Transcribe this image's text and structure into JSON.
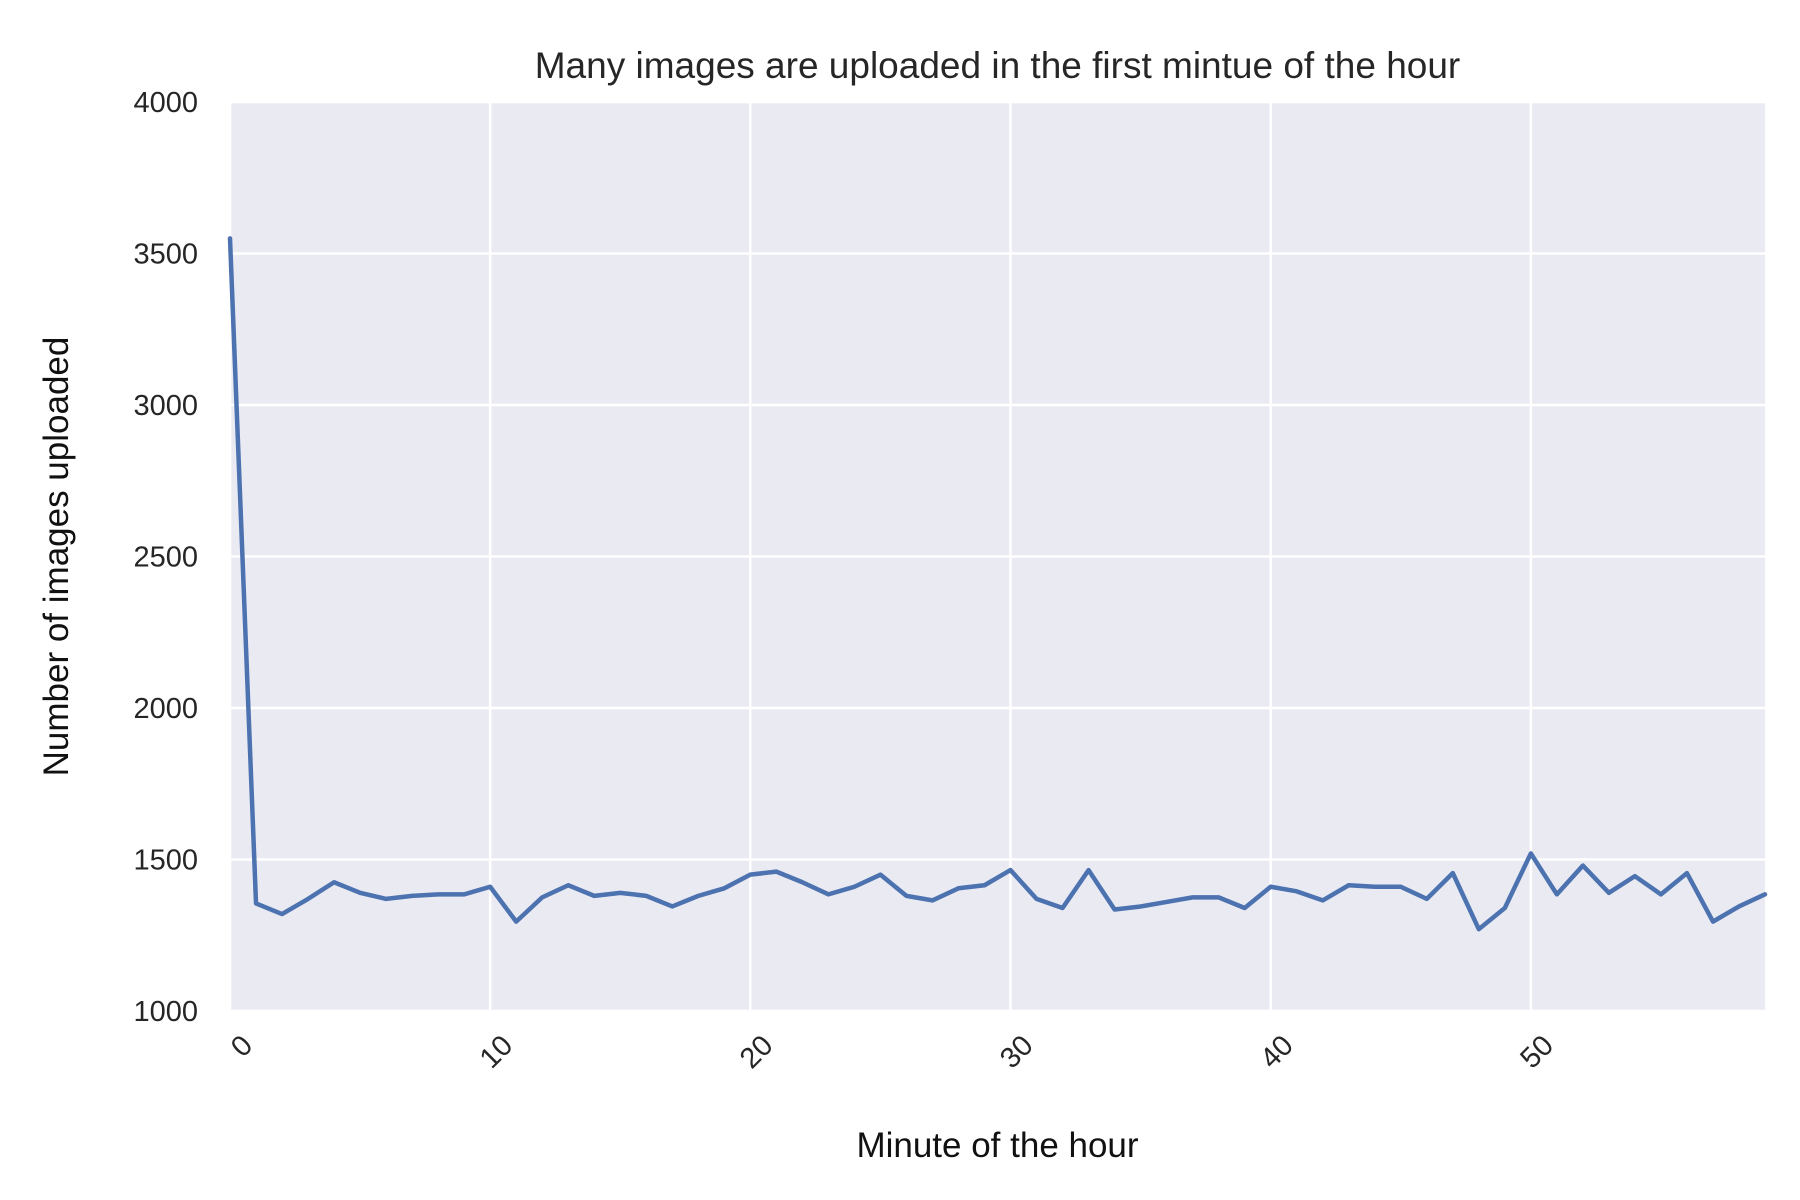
{
  "chart_data": {
    "type": "line",
    "title": "Many images are uploaded in the first mintue of the hour",
    "xlabel": "Minute of the hour",
    "ylabel": "Number of images uploaded",
    "xlim": [
      0,
      59
    ],
    "ylim": [
      1000,
      4000
    ],
    "xticks": [
      0,
      10,
      20,
      30,
      40,
      50
    ],
    "yticks": [
      1000,
      1500,
      2000,
      2500,
      3000,
      3500,
      4000
    ],
    "grid": true,
    "background_color": "#eaeaf2",
    "grid_color": "#ffffff",
    "line_color": "#4c72b0",
    "series": [
      {
        "x": [
          0,
          1,
          2,
          3,
          4,
          5,
          6,
          7,
          8,
          9,
          10,
          11,
          12,
          13,
          14,
          15,
          16,
          17,
          18,
          19,
          20,
          21,
          22,
          23,
          24,
          25,
          26,
          27,
          28,
          29,
          30,
          31,
          32,
          33,
          34,
          35,
          36,
          37,
          38,
          39,
          40,
          41,
          42,
          43,
          44,
          45,
          46,
          47,
          48,
          49,
          50,
          51,
          52,
          53,
          54,
          55,
          56,
          57,
          58,
          59
        ],
        "values": [
          3550,
          1355,
          1320,
          1370,
          1425,
          1390,
          1370,
          1380,
          1385,
          1385,
          1410,
          1295,
          1375,
          1415,
          1380,
          1390,
          1380,
          1345,
          1380,
          1405,
          1450,
          1460,
          1425,
          1385,
          1410,
          1450,
          1380,
          1365,
          1405,
          1415,
          1465,
          1370,
          1340,
          1465,
          1335,
          1345,
          1360,
          1375,
          1375,
          1340,
          1410,
          1395,
          1365,
          1415,
          1410,
          1410,
          1370,
          1455,
          1270,
          1340,
          1520,
          1385,
          1480,
          1390,
          1445,
          1385,
          1455,
          1295,
          1345,
          1385
        ]
      }
    ]
  }
}
